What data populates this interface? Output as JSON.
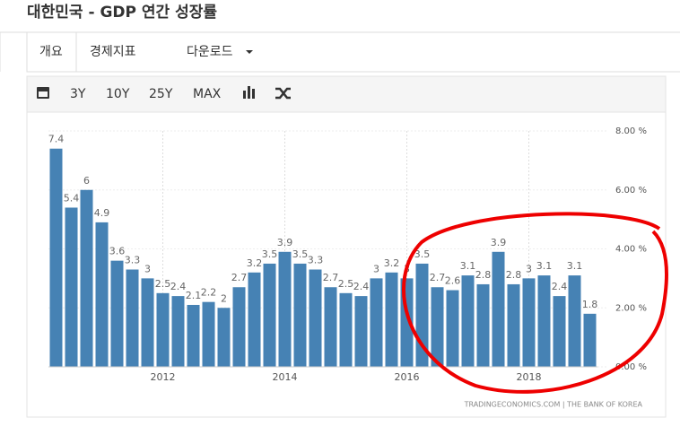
{
  "header": {
    "title": "대한민국 - GDP 연간 성장률"
  },
  "tabs": [
    "개요",
    "경제지표",
    "다운로드"
  ],
  "toolbar": [
    "3Y",
    "10Y",
    "25Y",
    "MAX"
  ],
  "chart_data": {
    "type": "bar",
    "categories": [
      null,
      null,
      null,
      null,
      null,
      null,
      null,
      "2012",
      null,
      null,
      null,
      null,
      null,
      null,
      null,
      "2014",
      null,
      null,
      null,
      null,
      null,
      null,
      null,
      "2016",
      null,
      null,
      null,
      null,
      null,
      null,
      null,
      "2018",
      null,
      null,
      null,
      null
    ],
    "values": [
      7.4,
      5.4,
      6,
      4.9,
      3.6,
      3.3,
      3,
      2.5,
      2.4,
      2.1,
      2.2,
      2,
      2.7,
      3.2,
      3.5,
      3.9,
      3.5,
      3.3,
      2.7,
      2.5,
      2.4,
      3,
      3.2,
      3,
      3.5,
      2.7,
      2.6,
      3.1,
      2.8,
      3.9,
      2.8,
      3,
      3.1,
      2.4,
      3.1,
      1.8
    ],
    "color": "#4682b4",
    "ylim": [
      0,
      8
    ],
    "yticks": [
      {
        "value": 0,
        "label": "0.00 %"
      },
      {
        "value": 2,
        "label": "2.00 %"
      },
      {
        "value": 4,
        "label": "4.00 %"
      },
      {
        "value": 6,
        "label": "6.00 %"
      },
      {
        "value": 8,
        "label": "8.00 %"
      }
    ],
    "grid": true,
    "source": "TRADINGECONOMICS.COM | THE BANK OF KOREA"
  }
}
